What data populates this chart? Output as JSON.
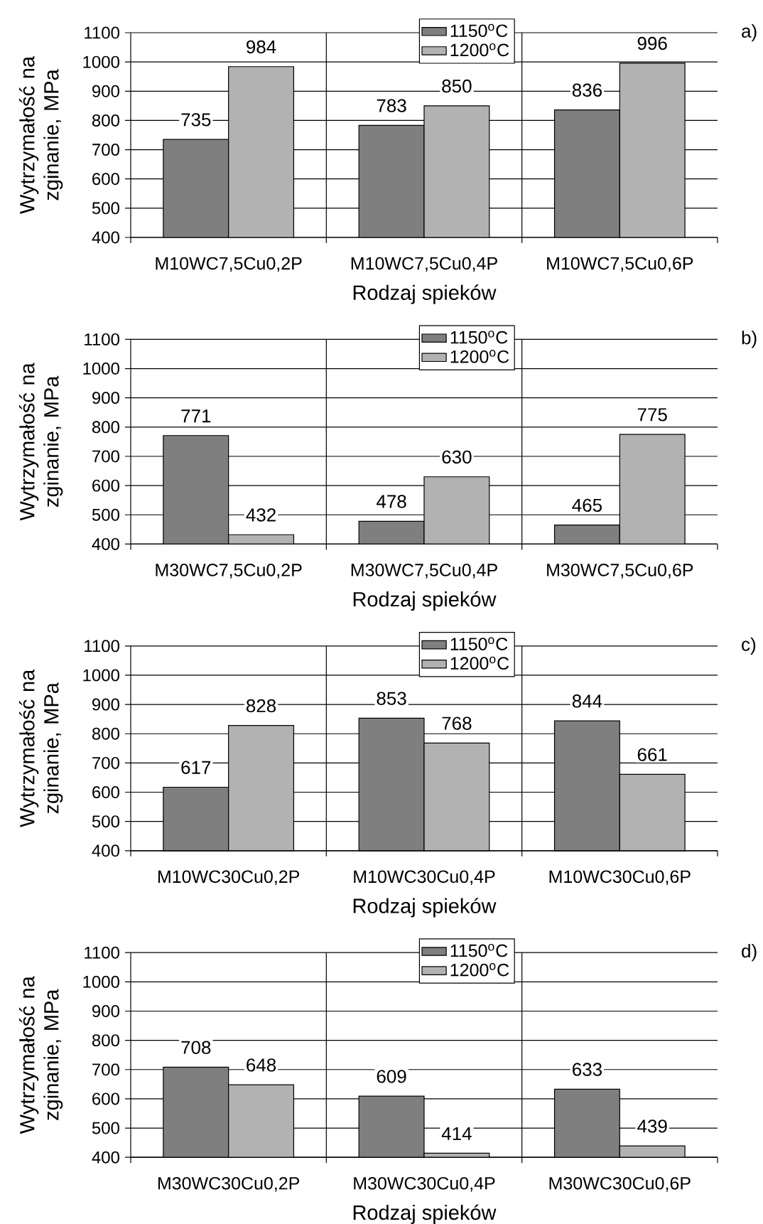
{
  "chart_data": [
    {
      "type": "bar",
      "annotations": [
        "a)"
      ],
      "xlabel": "Rodzaj spieków",
      "ylabel": "Wytrzymałość na zginanie, MPa",
      "categories": [
        "M10WC7,5Cu0,2P",
        "M10WC7,5Cu0,4P",
        "M10WC7,5Cu0,6P"
      ],
      "series": [
        {
          "name": "1150$^{o}$C",
          "color": "#7f7f7f",
          "values": [
            735,
            783,
            836
          ]
        },
        {
          "name": "1200$^{o}$C",
          "color": "#b2b2b2",
          "values": [
            984,
            850,
            996
          ]
        }
      ],
      "ylim": [
        400,
        1100
      ],
      "yticks": [
        400,
        500,
        600,
        700,
        800,
        900,
        1000,
        1100
      ],
      "grid": true,
      "legend": "top",
      "data_labels": true
    },
    {
      "type": "bar",
      "annotations": [
        "b)"
      ],
      "xlabel": "Rodzaj spieków",
      "ylabel": "Wytrzymałość na zginanie, MPa",
      "categories": [
        "M30WC7,5Cu0,2P",
        "M30WC7,5Cu0,4P",
        "M30WC7,5Cu0,6P"
      ],
      "series": [
        {
          "name": "1150$^{o}$C",
          "color": "#7f7f7f",
          "values": [
            771,
            478,
            465
          ]
        },
        {
          "name": "1200$^{o}$C",
          "color": "#b2b2b2",
          "values": [
            432,
            630,
            775
          ]
        }
      ],
      "ylim": [
        400,
        1100
      ],
      "yticks": [
        400,
        500,
        600,
        700,
        800,
        900,
        1000,
        1100
      ],
      "grid": true,
      "legend": "top",
      "data_labels": true
    },
    {
      "type": "bar",
      "annotations": [
        "c)"
      ],
      "xlabel": "Rodzaj spieków",
      "ylabel": "Wytrzymałość na zginanie, MPa",
      "categories": [
        "M10WC30Cu0,2P",
        "M10WC30Cu0,4P",
        "M10WC30Cu0,6P"
      ],
      "series": [
        {
          "name": "1150$^{o}$C",
          "color": "#7f7f7f",
          "values": [
            617,
            853,
            844
          ]
        },
        {
          "name": "1200$^{o}$C",
          "color": "#b2b2b2",
          "values": [
            828,
            768,
            661
          ]
        }
      ],
      "ylim": [
        400,
        1100
      ],
      "yticks": [
        400,
        500,
        600,
        700,
        800,
        900,
        1000,
        1100
      ],
      "grid": true,
      "legend": "top",
      "data_labels": true
    },
    {
      "type": "bar",
      "annotations": [
        "d)"
      ],
      "xlabel": "Rodzaj spieków",
      "ylabel": "Wytrzymałość na zginanie, MPa",
      "categories": [
        "M30WC30Cu0,2P",
        "M30WC30Cu0,4P",
        "M30WC30Cu0,6P"
      ],
      "series": [
        {
          "name": "1150$^{o}$C",
          "color": "#7f7f7f",
          "values": [
            708,
            609,
            633
          ]
        },
        {
          "name": "1200$^{o}$C",
          "color": "#b2b2b2",
          "values": [
            648,
            414,
            439
          ]
        }
      ],
      "ylim": [
        400,
        1100
      ],
      "yticks": [
        400,
        500,
        600,
        700,
        800,
        900,
        1000,
        1100
      ],
      "grid": true,
      "legend": "top",
      "data_labels": true
    }
  ]
}
